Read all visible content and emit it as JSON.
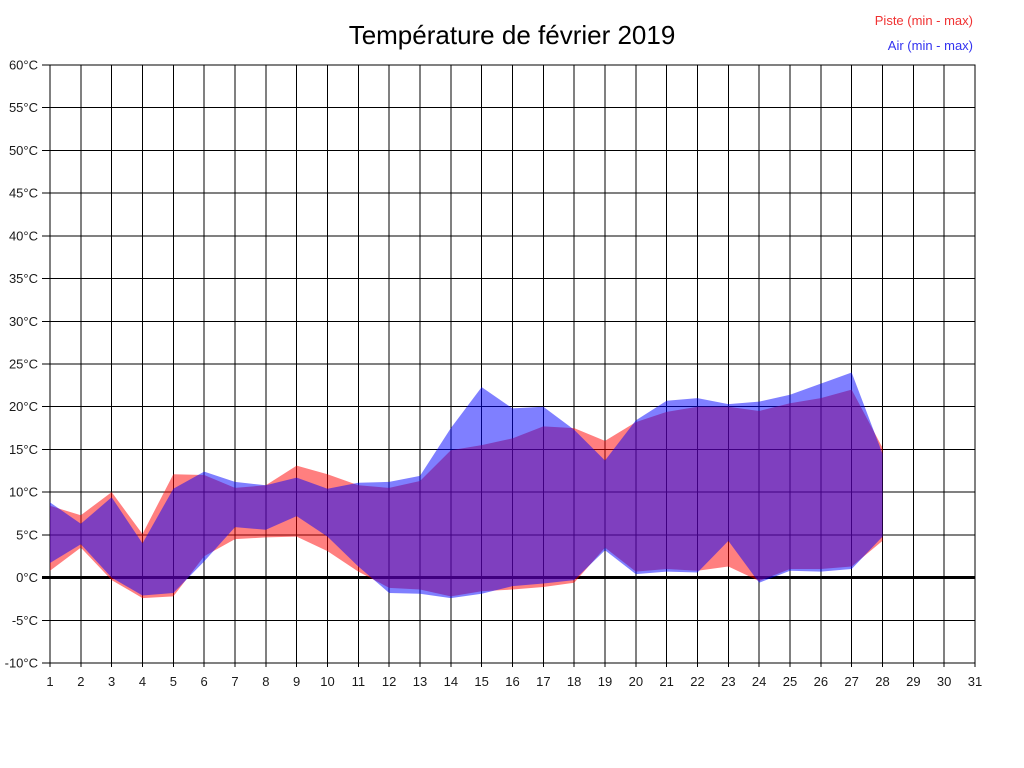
{
  "title": "Température de février 2019",
  "legend": {
    "items": [
      {
        "label": "Piste (min - max)",
        "color": "#f03232"
      },
      {
        "label": "Air (min - max)",
        "color": "#3232f0"
      }
    ]
  },
  "chart_data": {
    "type": "area",
    "title": "Température de février 2019",
    "xlabel": "",
    "ylabel": "",
    "x_unit": "day of month",
    "y_unit": "°C",
    "xlim": [
      1,
      31
    ],
    "ylim": [
      -10,
      60
    ],
    "grid": true,
    "zero_line": true,
    "legend_position": "top-right",
    "x_ticks": [
      1,
      2,
      3,
      4,
      5,
      6,
      7,
      8,
      9,
      10,
      11,
      12,
      13,
      14,
      15,
      16,
      17,
      18,
      19,
      20,
      21,
      22,
      23,
      24,
      25,
      26,
      27,
      28,
      29,
      30,
      31
    ],
    "x_tick_labels": [
      "1",
      "2",
      "3",
      "4",
      "5",
      "6",
      "7",
      "8",
      "9",
      "10",
      "11",
      "12",
      "13",
      "14",
      "15",
      "16",
      "17",
      "18",
      "19",
      "20",
      "21",
      "22",
      "23",
      "24",
      "25",
      "26",
      "27",
      "28",
      "29",
      "30",
      "31"
    ],
    "y_ticks": [
      60,
      55,
      50,
      45,
      40,
      35,
      30,
      25,
      20,
      15,
      10,
      5,
      0,
      -5,
      -10
    ],
    "y_tick_labels": [
      "60°C",
      "55°C",
      "50°C",
      "45°C",
      "40°C",
      "35°C",
      "30°C",
      "25°C",
      "20°C",
      "15°C",
      "10°C",
      "5°C",
      "0°C",
      "-5°C",
      "-10°C"
    ],
    "days": [
      1,
      2,
      3,
      4,
      5,
      6,
      7,
      8,
      9,
      10,
      11,
      12,
      13,
      14,
      15,
      16,
      17,
      18,
      19,
      20,
      21,
      22,
      23,
      24,
      25,
      26,
      27,
      28
    ],
    "series": [
      {
        "name": "Piste (min - max)",
        "fill": "#ff0000",
        "fill_opacity": 0.5,
        "min": [
          0.8,
          3.5,
          -0.3,
          -2.4,
          -2.2,
          2.5,
          4.5,
          4.7,
          4.8,
          3.1,
          0.7,
          -1.2,
          -1.4,
          -2.2,
          -1.6,
          -1.4,
          -1.1,
          -0.6,
          3.5,
          0.7,
          1.0,
          0.8,
          1.3,
          -0.4,
          1.0,
          1.0,
          1.3,
          4.3
        ],
        "max": [
          8.4,
          7.3,
          10.0,
          5.1,
          12.1,
          12.0,
          10.5,
          10.8,
          13.1,
          12.1,
          10.8,
          10.5,
          11.3,
          14.9,
          15.5,
          16.3,
          17.7,
          17.5,
          16.0,
          18.2,
          19.4,
          20.0,
          20.0,
          19.5,
          20.4,
          21.0,
          22.0,
          15.2
        ]
      },
      {
        "name": "Air (min - max)",
        "fill": "#0000ff",
        "fill_opacity": 0.5,
        "min": [
          1.7,
          3.9,
          0.0,
          -2.1,
          -1.8,
          1.9,
          5.9,
          5.6,
          7.2,
          4.8,
          1.3,
          -1.8,
          -1.9,
          -2.4,
          -1.9,
          -1.0,
          -0.7,
          -0.3,
          3.2,
          0.4,
          0.7,
          0.6,
          4.3,
          -0.6,
          0.8,
          0.7,
          1.0,
          4.8
        ],
        "max": [
          8.8,
          6.3,
          9.4,
          4.0,
          10.4,
          12.4,
          11.2,
          10.8,
          11.7,
          10.4,
          11.1,
          11.2,
          11.9,
          17.5,
          22.3,
          19.8,
          20.0,
          17.3,
          13.7,
          18.4,
          20.7,
          21.0,
          20.3,
          20.6,
          21.4,
          22.7,
          24.0,
          14.5
        ]
      }
    ]
  }
}
